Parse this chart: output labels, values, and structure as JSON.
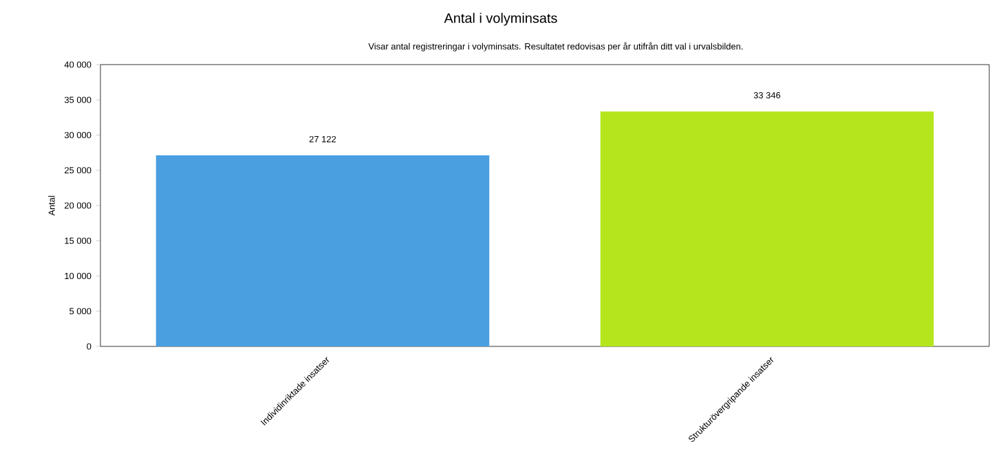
{
  "chart_data": {
    "type": "bar",
    "title": "Antal i volyminsats",
    "subtitle": "Visar antal registreringar i volyminsats. Resultatet redovisas per år utifrån ditt val i urvalsbilden.",
    "ylabel": "Antal",
    "categories": [
      "Individinriktade insatser",
      "Strukturövergripande insatser"
    ],
    "values": [
      27122,
      33346
    ],
    "value_labels": [
      "27 122",
      "33 346"
    ],
    "colors": [
      "#4a9fe0",
      "#b5e61d"
    ],
    "ylim": [
      0,
      40000
    ],
    "yticks": [
      {
        "value": 0,
        "label": "0"
      },
      {
        "value": 5000,
        "label": "5 000"
      },
      {
        "value": 10000,
        "label": "10 000"
      },
      {
        "value": 15000,
        "label": "15 000"
      },
      {
        "value": 20000,
        "label": "20 000"
      },
      {
        "value": 25000,
        "label": "25 000"
      },
      {
        "value": 30000,
        "label": "30 000"
      },
      {
        "value": 35000,
        "label": "35 000"
      },
      {
        "value": 40000,
        "label": "40 000"
      }
    ],
    "grid": false
  }
}
